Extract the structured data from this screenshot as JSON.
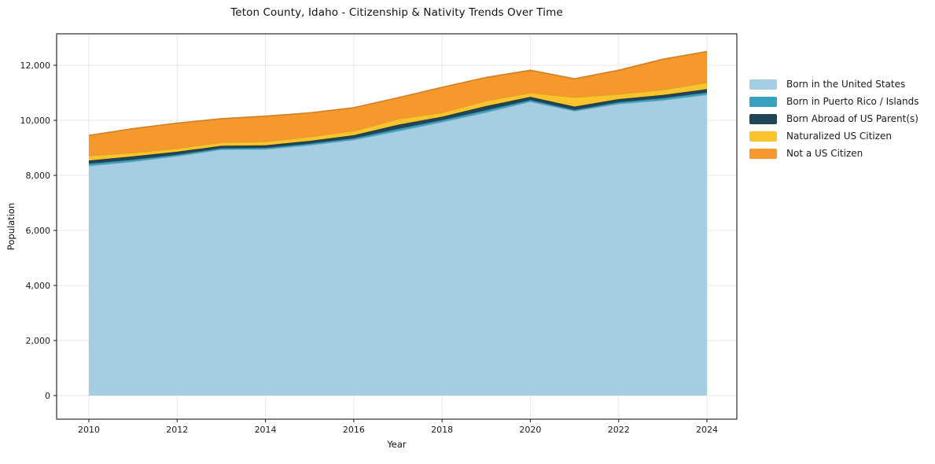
{
  "title": "Teton County, Idaho - Citizenship & Nativity Trends Over Time",
  "xlabel": "Year",
  "ylabel": "Population",
  "chart_data": {
    "type": "area",
    "stacked": true,
    "title": "Teton County, Idaho - Citizenship & Nativity Trends Over Time",
    "xlabel": "Year",
    "ylabel": "Population",
    "grid": true,
    "legend_position": "right-outside",
    "x": [
      2010,
      2011,
      2012,
      2013,
      2014,
      2015,
      2016,
      2017,
      2018,
      2019,
      2020,
      2021,
      2022,
      2023,
      2024
    ],
    "series": [
      {
        "name": "Born in the United States",
        "color": "#a5cee3",
        "values": [
          8350,
          8500,
          8700,
          8940,
          8950,
          9100,
          9290,
          9610,
          9940,
          10290,
          10680,
          10340,
          10600,
          10730,
          10935
        ]
      },
      {
        "name": "Born in Puerto Rico / Islands",
        "color": "#38a1bf",
        "values": [
          75,
          70,
          55,
          45,
          50,
          55,
          60,
          80,
          70,
          80,
          60,
          40,
          60,
          75,
          75
        ]
      },
      {
        "name": "Born Abroad of US Parent(s)",
        "color": "#1f4557",
        "values": [
          115,
          120,
          105,
          90,
          95,
          100,
          110,
          150,
          120,
          150,
          115,
          120,
          110,
          115,
          125
        ]
      },
      {
        "name": "Naturalized US Citizen",
        "color": "#fcc32d",
        "values": [
          170,
          135,
          120,
          125,
          135,
          145,
          160,
          210,
          150,
          190,
          145,
          340,
          180,
          190,
          240
        ]
      },
      {
        "name": "Not a US Citizen",
        "color": "#f6982b",
        "values": [
          740,
          875,
          920,
          860,
          920,
          870,
          840,
          770,
          920,
          850,
          820,
          670,
          870,
          1110,
          1125
        ]
      }
    ],
    "xticks": [
      2010,
      2012,
      2014,
      2016,
      2018,
      2020,
      2022,
      2024
    ],
    "xtick_labels": [
      "2010",
      "2012",
      "2014",
      "2016",
      "2018",
      "2020",
      "2022",
      "2024"
    ],
    "yticks": [
      0,
      2000,
      4000,
      6000,
      8000,
      10000,
      12000
    ],
    "ytick_labels": [
      "0",
      "2,000",
      "4,000",
      "6,000",
      "8,000",
      "10,000",
      "12,000"
    ],
    "ylim": [
      0,
      13100
    ],
    "xlim": [
      2009.3,
      2024.7
    ]
  }
}
